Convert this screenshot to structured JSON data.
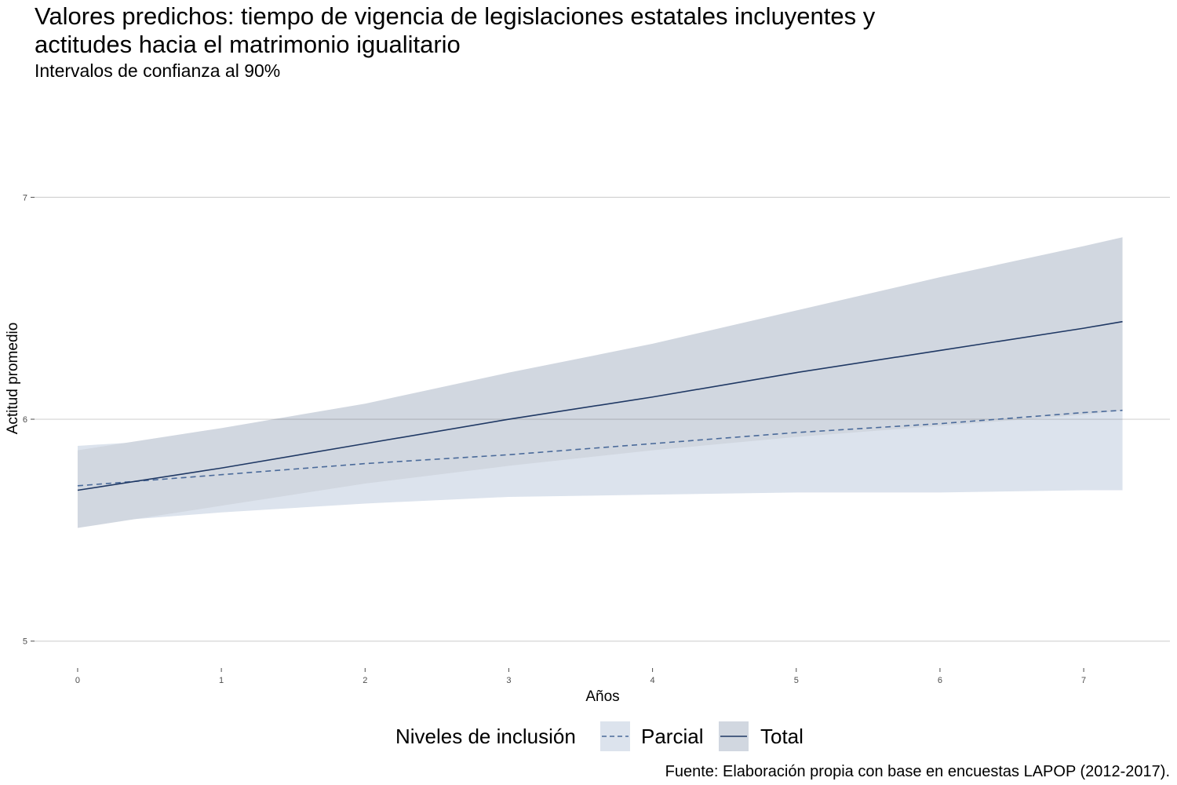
{
  "chart_data": {
    "type": "line",
    "title_lines": [
      "Valores predichos: tiempo de vigencia de legislaciones estatales incluyentes y",
      "actitudes hacia el matrimonio igualitario"
    ],
    "subtitle": "Intervalos de confianza al 90%",
    "xlabel": "Años",
    "ylabel": "Actitud promedio",
    "caption": "Fuente: Elaboración propia con base en encuestas LAPOP (2012-2017).",
    "xlim": [
      -0.3,
      7.6
    ],
    "ylim": [
      4.9,
      7.5
    ],
    "x_ticks": [
      0,
      1,
      2,
      3,
      4,
      5,
      6,
      7
    ],
    "x_tick_labels": [
      "0",
      "1",
      "2",
      "3",
      "4",
      "5",
      "6",
      "7"
    ],
    "y_ticks": [
      5,
      6,
      7
    ],
    "y_tick_labels": [
      "5",
      "6",
      "7"
    ],
    "grid": "horizontal-major",
    "legend": {
      "title": "Niveles de inclusión",
      "position": "bottom",
      "entries": [
        "Parcial",
        "Total"
      ]
    },
    "x": [
      0,
      1,
      2,
      3,
      4,
      5,
      6,
      7,
      7.27
    ],
    "series": [
      {
        "name": "Parcial",
        "line_style": "dashed",
        "line_color": "#4a6a9a",
        "ribbon_color": "#dce3ed",
        "values": [
          5.7,
          5.75,
          5.8,
          5.84,
          5.89,
          5.94,
          5.98,
          6.03,
          6.04
        ],
        "lower": [
          5.53,
          5.58,
          5.62,
          5.65,
          5.66,
          5.67,
          5.67,
          5.68,
          5.68
        ],
        "upper": [
          5.88,
          5.92,
          5.98,
          6.04,
          6.12,
          6.21,
          6.29,
          6.38,
          6.41
        ]
      },
      {
        "name": "Total",
        "line_style": "solid",
        "line_color": "#1f3864",
        "ribbon_color": "#d1d7e0",
        "values": [
          5.68,
          5.78,
          5.89,
          6.0,
          6.1,
          6.21,
          6.31,
          6.41,
          6.44
        ],
        "lower": [
          5.51,
          5.61,
          5.71,
          5.79,
          5.86,
          5.92,
          5.97,
          6.02,
          6.04
        ],
        "upper": [
          5.86,
          5.96,
          6.07,
          6.21,
          6.34,
          6.49,
          6.64,
          6.78,
          6.82
        ]
      }
    ]
  }
}
